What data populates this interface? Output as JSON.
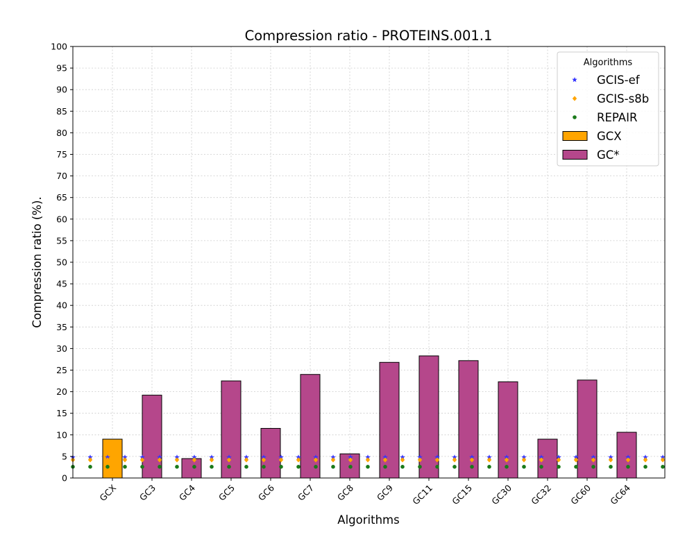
{
  "chart_data": {
    "type": "bar",
    "title": "Compression ratio -  PROTEINS.001.1",
    "xlabel": "Algorithms",
    "ylabel": "Compression ratio (%).",
    "ylim": [
      0,
      100
    ],
    "yticks": [
      0,
      5,
      10,
      15,
      20,
      25,
      30,
      35,
      40,
      45,
      50,
      55,
      60,
      65,
      70,
      75,
      80,
      85,
      90,
      95,
      100
    ],
    "grid": true,
    "legend_title": "Algorithms",
    "legend_position": "top-right",
    "categories": [
      "GCX",
      "GC3",
      "GC4",
      "GC5",
      "GC6",
      "GC7",
      "GC8",
      "GC9",
      "GC11",
      "GC15",
      "GC30",
      "GC32",
      "GC60",
      "GC64"
    ],
    "bar_series": [
      {
        "name": "GCX",
        "color": "#ffa500",
        "categories": [
          "GCX"
        ],
        "values": [
          9.0
        ]
      },
      {
        "name": "GC*",
        "color": "#b5478b",
        "categories": [
          "GC3",
          "GC4",
          "GC5",
          "GC6",
          "GC7",
          "GC8",
          "GC9",
          "GC11",
          "GC15",
          "GC30",
          "GC32",
          "GC60",
          "GC64"
        ],
        "values": [
          19.2,
          4.5,
          22.5,
          11.5,
          24.0,
          5.6,
          26.8,
          28.3,
          27.2,
          22.3,
          9.0,
          22.7,
          10.6
        ]
      }
    ],
    "reference_series": [
      {
        "name": "GCIS-ef",
        "color": "#3333ff",
        "marker": "star",
        "value": 4.8
      },
      {
        "name": "GCIS-s8b",
        "color": "#ffa500",
        "marker": "diamond",
        "value": 4.2
      },
      {
        "name": "REPAIR",
        "color": "#1a7a1a",
        "marker": "circle",
        "value": 2.6
      }
    ],
    "legend_entries": [
      {
        "name": "GCIS-ef",
        "kind": "marker",
        "marker": "star",
        "color": "#3333ff"
      },
      {
        "name": "GCIS-s8b",
        "kind": "marker",
        "marker": "diamond",
        "color": "#ffa500"
      },
      {
        "name": "REPAIR",
        "kind": "marker",
        "marker": "circle",
        "color": "#1a7a1a"
      },
      {
        "name": "GCX",
        "kind": "patch",
        "color": "#ffa500"
      },
      {
        "name": "GC*",
        "kind": "patch",
        "color": "#b5478b"
      }
    ]
  }
}
